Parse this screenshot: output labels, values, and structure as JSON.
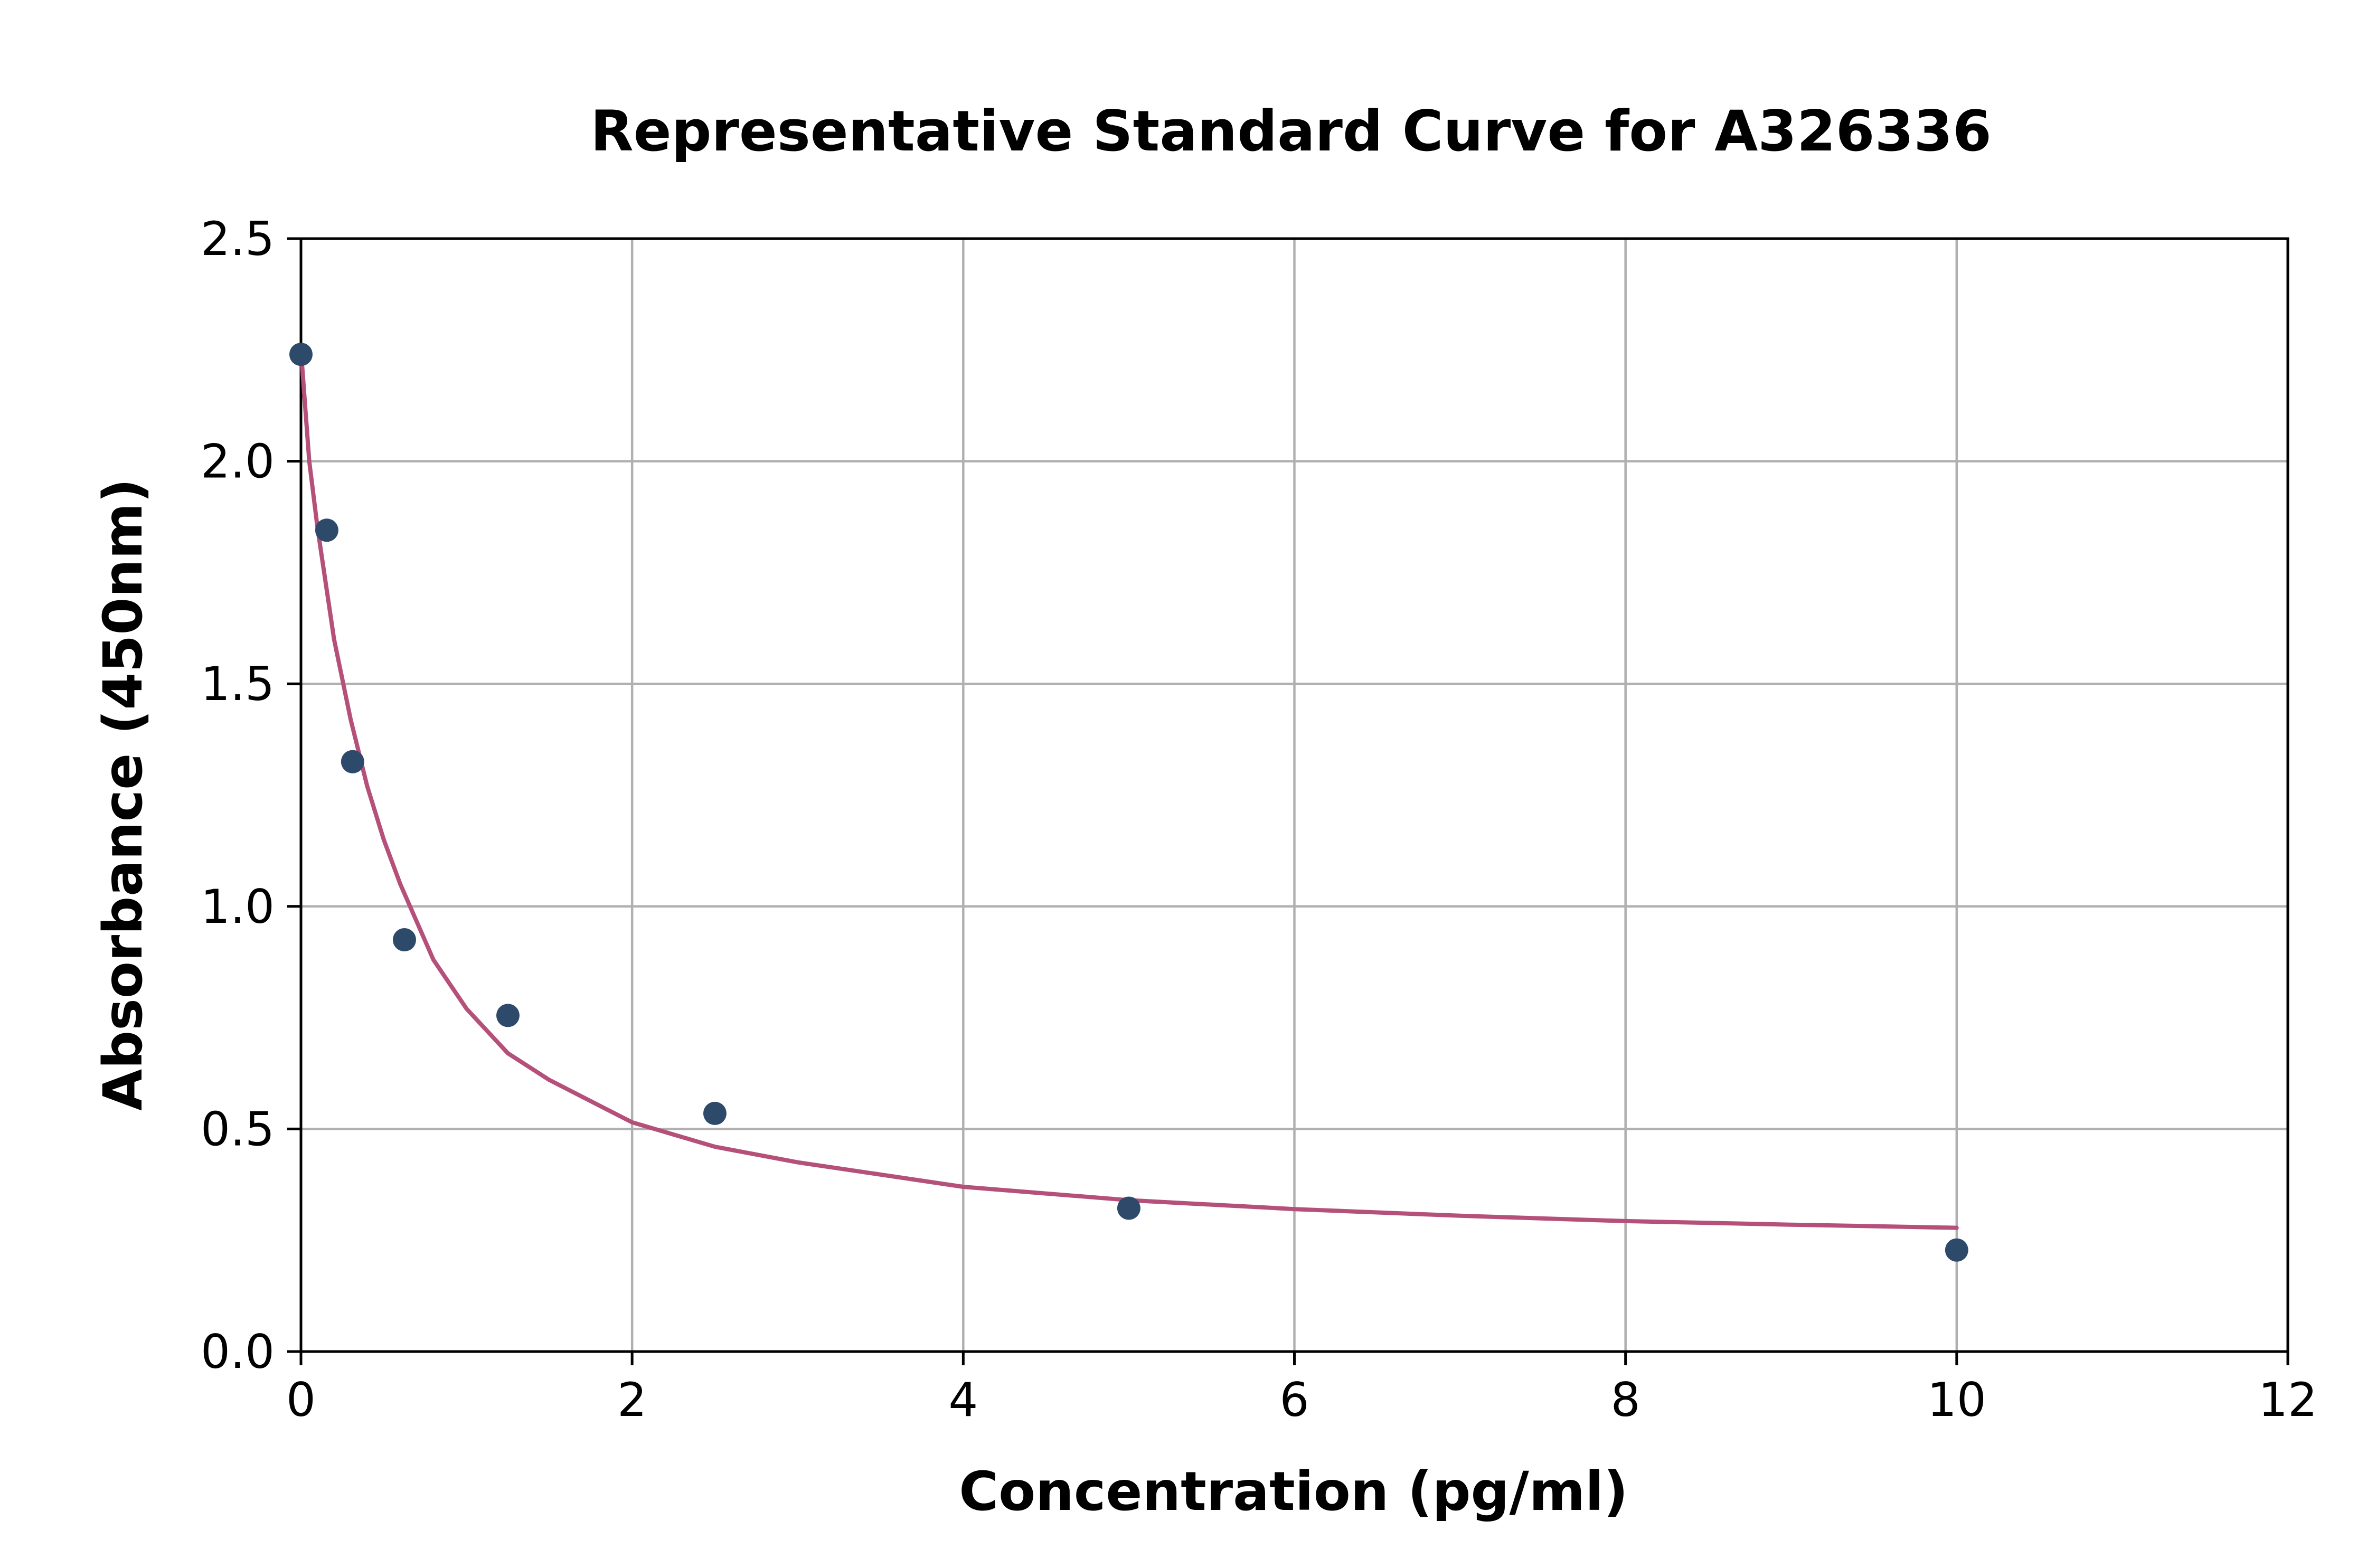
{
  "chart_data": {
    "type": "scatter",
    "title": "Representative Standard Curve for A326336",
    "xlabel": "Concentration (pg/ml)",
    "ylabel": "Absorbance (450nm)",
    "xlim": [
      0,
      12
    ],
    "ylim": [
      0,
      2.5
    ],
    "xticks": [
      "0",
      "2",
      "4",
      "6",
      "8",
      "10",
      "12"
    ],
    "yticks": [
      "0.0",
      "0.5",
      "1.0",
      "1.5",
      "2.0",
      "2.5"
    ],
    "grid": true,
    "legend": "none",
    "series": [
      {
        "kind": "points",
        "color": "#2e4a6b",
        "x": [
          0,
          0.156,
          0.312,
          0.625,
          1.25,
          2.5,
          5,
          10
        ],
        "y": [
          2.24,
          1.845,
          1.325,
          0.925,
          0.755,
          0.535,
          0.322,
          0.228
        ]
      },
      {
        "kind": "fit-curve",
        "color": "#b5507a",
        "x": [
          0,
          0.05,
          0.1,
          0.2,
          0.3,
          0.4,
          0.5,
          0.6,
          0.8,
          1.0,
          1.25,
          1.5,
          2.0,
          2.5,
          3.0,
          4.0,
          5.0,
          6.0,
          7.0,
          8.0,
          9.0,
          10.0
        ],
        "y": [
          2.25,
          2.0,
          1.85,
          1.6,
          1.42,
          1.27,
          1.15,
          1.05,
          0.88,
          0.77,
          0.67,
          0.61,
          0.515,
          0.46,
          0.425,
          0.37,
          0.34,
          0.32,
          0.305,
          0.293,
          0.285,
          0.278
        ]
      }
    ]
  }
}
